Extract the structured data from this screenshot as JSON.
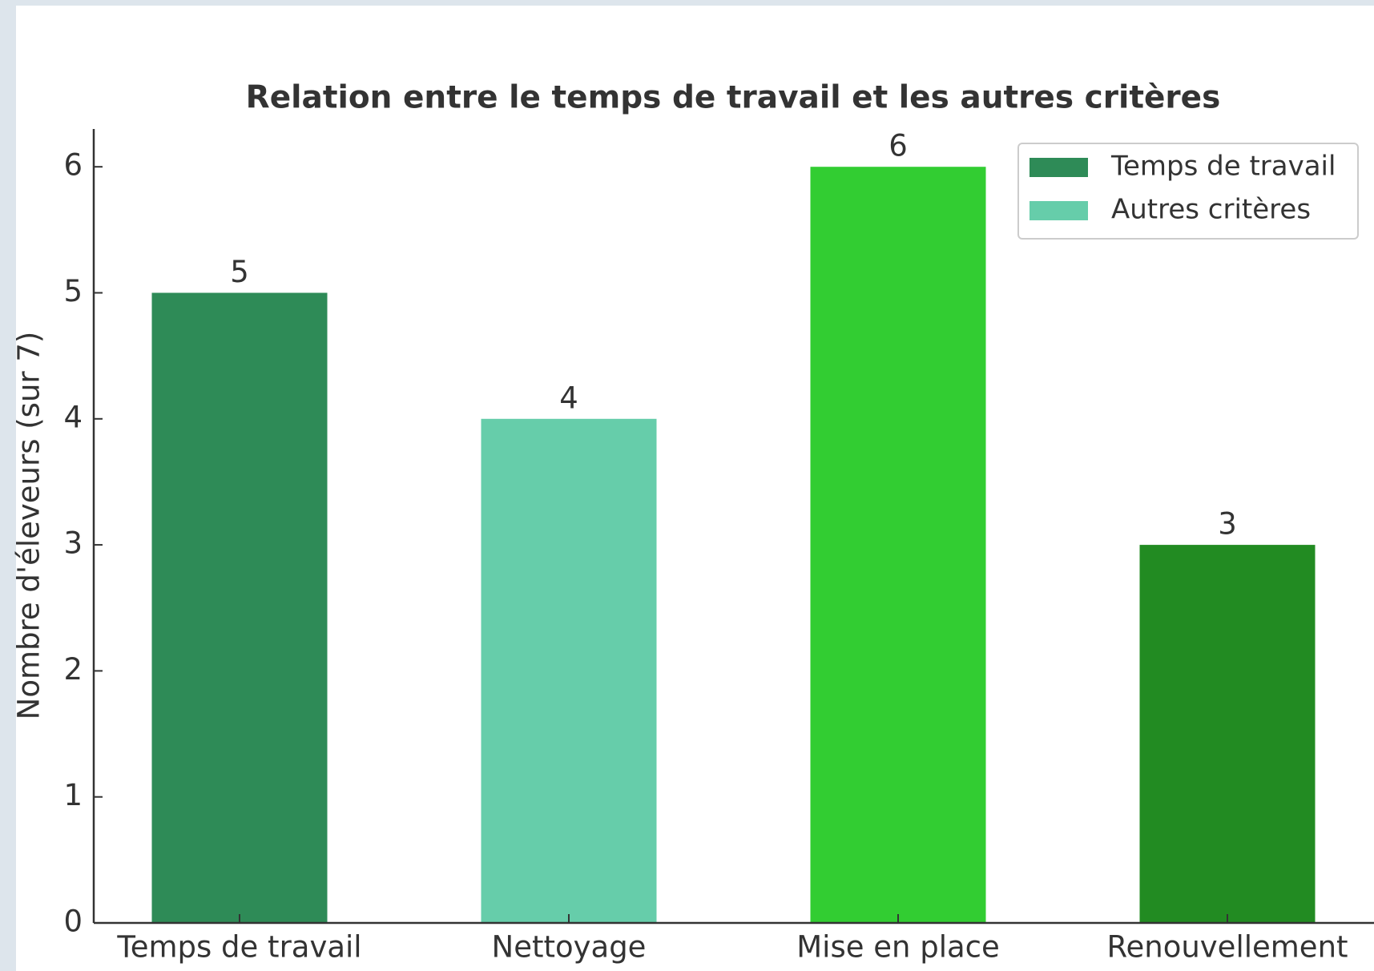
{
  "chart_data": {
    "type": "bar",
    "title": "Relation entre le temps de travail et les autres critères",
    "ylabel": "Nombre d'éleveurs (sur 7)",
    "categories": [
      "Temps de travail",
      "Nettoyage",
      "Mise en place",
      "Renouvellement"
    ],
    "values": [
      5,
      4,
      6,
      3
    ],
    "colors": [
      "#2e8b57",
      "#66cdaa",
      "#32cd32",
      "#228b22"
    ],
    "legend": [
      {
        "name": "Temps de travail",
        "color": "#2e8b57"
      },
      {
        "name": "Autres critères",
        "color": "#66cdaa"
      }
    ],
    "ylim": [
      0,
      6.3
    ],
    "yticks": [
      0,
      1,
      2,
      3,
      4,
      5,
      6
    ],
    "grid": false
  }
}
